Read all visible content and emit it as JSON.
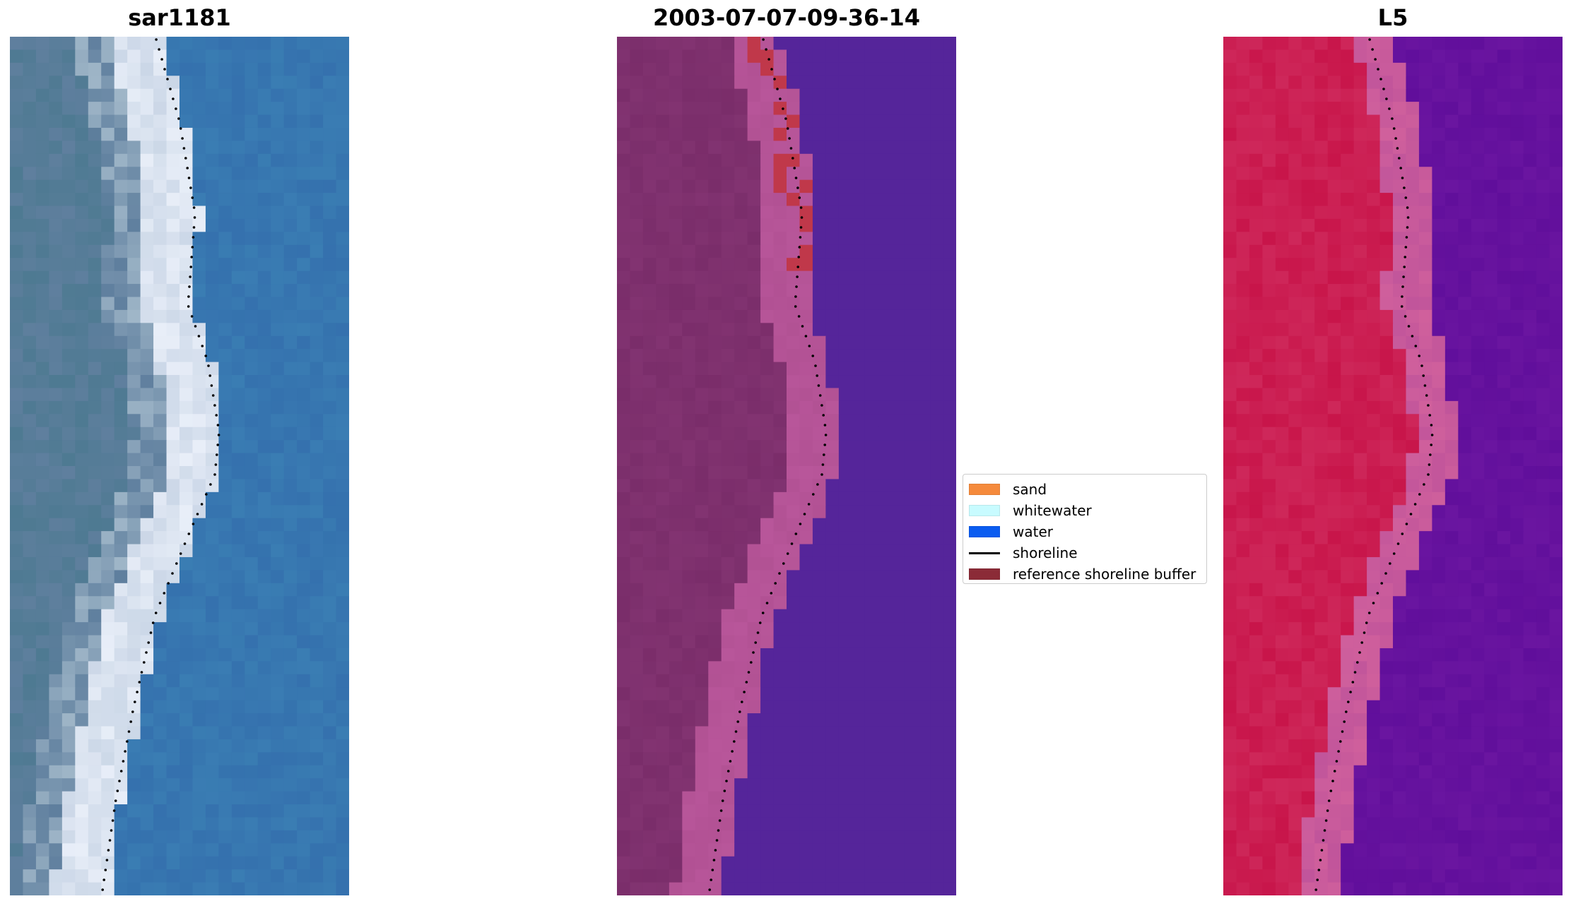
{
  "panels": [
    {
      "title": "sar1181"
    },
    {
      "title": "2003-07-07-09-36-14"
    },
    {
      "title": "L5"
    }
  ],
  "legend": {
    "items": [
      {
        "label": "sand",
        "color": "#f58a3c",
        "kind": "patch"
      },
      {
        "label": "whitewater",
        "color": "#c8fbff",
        "kind": "patch"
      },
      {
        "label": "water",
        "color": "#0a5cf0",
        "kind": "patch"
      },
      {
        "label": "shoreline",
        "color": "#000000",
        "kind": "line"
      },
      {
        "label": "reference shoreline buffer",
        "color": "#8b2b37",
        "kind": "patch"
      }
    ]
  },
  "colors": {
    "rgb_water": "#3a7db3",
    "rgb_land": "#5f7f9e",
    "rgb_white": "#e8eef8",
    "class_water": "#55259a",
    "class_land": "#7a2d6a",
    "class_buffer": "#b8569a",
    "class_red": "#c0384a",
    "mndwi_land": "#c8154a",
    "mndwi_water": "#6a15a0",
    "mndwi_transition": "#d0609c"
  }
}
